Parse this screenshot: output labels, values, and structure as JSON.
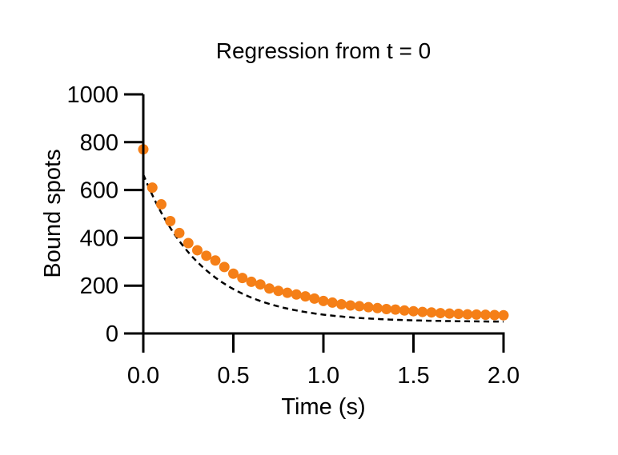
{
  "chart_data": {
    "type": "scatter",
    "title": "Regression from t = 0",
    "xlabel": "Time (s)",
    "ylabel": "Bound spots",
    "xlim": [
      0,
      2.0
    ],
    "ylim": [
      0,
      1000
    ],
    "xticks": [
      "0.0",
      "0.5",
      "1.0",
      "1.5",
      "2.0"
    ],
    "yticks": [
      "0",
      "200",
      "400",
      "600",
      "800",
      "1000"
    ],
    "grid": false,
    "colors": {
      "points": "#f57f17",
      "fit": "#000000"
    },
    "series": [
      {
        "kind": "points",
        "x": [
          0,
          0.05,
          0.1,
          0.15,
          0.2,
          0.25,
          0.3,
          0.35,
          0.4,
          0.45,
          0.5,
          0.55,
          0.6,
          0.65,
          0.7,
          0.75,
          0.8,
          0.85,
          0.9,
          0.95,
          1.0,
          1.05,
          1.1,
          1.15,
          1.2,
          1.25,
          1.3,
          1.35,
          1.4,
          1.45,
          1.5,
          1.55,
          1.6,
          1.65,
          1.7,
          1.75,
          1.8,
          1.85,
          1.9,
          1.95,
          2.0
        ],
        "y": [
          770,
          610,
          540,
          470,
          420,
          378,
          348,
          325,
          305,
          278,
          250,
          232,
          216,
          205,
          188,
          178,
          170,
          163,
          155,
          146,
          136,
          129,
          122,
          117,
          114,
          110,
          106,
          102,
          100,
          96,
          93,
          90,
          88,
          85,
          83,
          82,
          80,
          79,
          78,
          77,
          76
        ]
      },
      {
        "kind": "fit",
        "model": "exponential decay",
        "y0": 665,
        "plateau": 48,
        "k": 3.0
      }
    ]
  }
}
